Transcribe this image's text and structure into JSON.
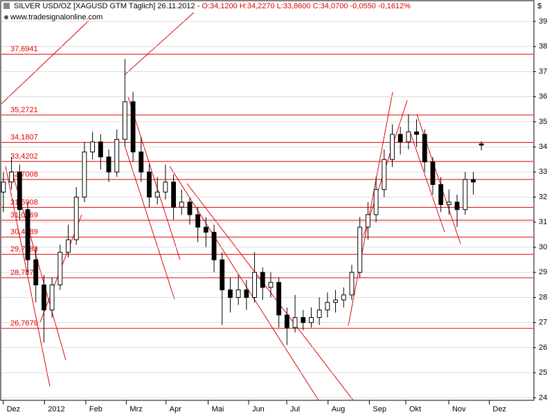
{
  "chart_data": {
    "type": "candlestick",
    "title": "SILVER USD/OZ [XAGUSD GTM  Täglich] 26.11.2012 - ",
    "quote": "O:34,1200 H:34,2270 L:33,8600 C:34,0700 -0,0550 -0,1612%",
    "subtitle": "www.tradesignalonline.com",
    "y_label": "$",
    "open": [
      32.2,
      32.6,
      33.0,
      31.5,
      29.5,
      28.5,
      27.5,
      28.5,
      29.8,
      30.3,
      32.0,
      33.8,
      34.2,
      33.6,
      33.0,
      34.3,
      35.8,
      33.8,
      33.0,
      32.0,
      32.2,
      32.6,
      31.6,
      31.8,
      31.3,
      30.8,
      30.6,
      29.5,
      28.3,
      28.0,
      28.3,
      28.0,
      29.0,
      28.4,
      28.6,
      27.3,
      26.8,
      27.2,
      27.0,
      27.2,
      27.5,
      27.8,
      27.9,
      28.1,
      29.0,
      30.8,
      31.3,
      32.3,
      33.5,
      34.5,
      34.2,
      34.6,
      34.5,
      33.4,
      32.5,
      31.7,
      31.8,
      31.5,
      32.7,
      34.12
    ],
    "high": [
      33.0,
      33.6,
      33.3,
      31.8,
      30.0,
      28.9,
      28.8,
      30.1,
      30.9,
      32.4,
      34.2,
      34.6,
      34.5,
      33.9,
      34.7,
      37.5,
      36.2,
      34.4,
      33.3,
      32.8,
      33.3,
      32.9,
      32.3,
      32.0,
      31.6,
      31.2,
      30.9,
      29.8,
      28.8,
      28.9,
      28.7,
      29.8,
      29.2,
      29.0,
      28.8,
      27.6,
      28.1,
      27.5,
      27.6,
      28.0,
      28.2,
      28.3,
      28.4,
      29.3,
      31.2,
      31.8,
      32.8,
      33.9,
      34.9,
      34.8,
      35.3,
      35.1,
      34.7,
      33.6,
      32.8,
      32.3,
      32.1,
      33.0,
      33.0,
      34.227
    ],
    "low": [
      31.4,
      32.3,
      31.1,
      29.0,
      27.8,
      26.2,
      27.2,
      28.3,
      29.6,
      30.1,
      31.8,
      33.5,
      33.1,
      32.6,
      32.8,
      34.0,
      33.4,
      32.6,
      31.6,
      31.7,
      31.9,
      31.1,
      31.3,
      30.9,
      30.2,
      30.0,
      29.0,
      26.9,
      27.4,
      27.7,
      27.5,
      27.8,
      27.9,
      28.0,
      26.8,
      26.1,
      26.6,
      26.7,
      26.8,
      26.9,
      27.2,
      27.4,
      27.6,
      27.9,
      28.8,
      30.3,
      31.0,
      32.0,
      33.2,
      33.7,
      33.9,
      34.0,
      33.0,
      32.1,
      31.4,
      31.3,
      30.8,
      31.3,
      32.1,
      33.86
    ],
    "close": [
      32.6,
      33.0,
      31.5,
      29.5,
      28.5,
      27.5,
      28.5,
      29.8,
      30.3,
      32.0,
      33.8,
      34.2,
      33.6,
      33.0,
      34.3,
      35.8,
      33.8,
      33.0,
      32.0,
      32.2,
      32.6,
      31.6,
      31.8,
      31.3,
      30.8,
      30.6,
      29.5,
      28.3,
      28.0,
      28.3,
      28.0,
      29.0,
      28.4,
      28.6,
      27.3,
      26.8,
      27.2,
      27.0,
      27.2,
      27.5,
      27.8,
      27.9,
      28.1,
      29.0,
      30.8,
      31.3,
      32.3,
      33.5,
      34.5,
      34.2,
      34.6,
      34.5,
      33.4,
      32.5,
      31.7,
      31.8,
      31.5,
      32.7,
      32.6,
      34.07
    ],
    "xlim": [
      -0.25,
      65.4
    ],
    "xticks": [
      {
        "value": 0.4,
        "label": "Dez"
      },
      {
        "value": 5.5,
        "label": "2012"
      },
      {
        "value": 10.6,
        "label": "Feb"
      },
      {
        "value": 15.6,
        "label": "Mrz"
      },
      {
        "value": 20.5,
        "label": "Apr"
      },
      {
        "value": 25.7,
        "label": "Mai"
      },
      {
        "value": 30.7,
        "label": "Jun"
      },
      {
        "value": 35.4,
        "label": "Jul"
      },
      {
        "value": 40.5,
        "label": "Aug"
      },
      {
        "value": 45.6,
        "label": "Sep"
      },
      {
        "value": 50.1,
        "label": "Okt"
      },
      {
        "value": 55.4,
        "label": "Nov"
      },
      {
        "value": 60.4,
        "label": "Dez"
      }
    ],
    "ylim": [
      23.9,
      39.8
    ],
    "yticks": [
      24,
      25,
      26,
      27,
      28,
      29,
      30,
      31,
      32,
      33,
      34,
      35,
      36,
      37,
      38,
      39
    ],
    "levels": [
      {
        "value": 37.6941,
        "label": "37,6941"
      },
      {
        "value": 35.2721,
        "label": "35,2721"
      },
      {
        "value": 34.1807,
        "label": "34,1807"
      },
      {
        "value": 33.4202,
        "label": "33,4202"
      },
      {
        "value": 32.7008,
        "label": "32,7008"
      },
      {
        "value": 31.5908,
        "label": "31,5908"
      },
      {
        "value": 31.0769,
        "label": "31,0769"
      },
      {
        "value": 30.4089,
        "label": "30,4089"
      },
      {
        "value": 29.7183,
        "label": "29,7183"
      },
      {
        "value": 28.7874,
        "label": "28,7874"
      },
      {
        "value": 26.7679,
        "label": "26,7679"
      }
    ],
    "level_color": "#e00000",
    "up_color": "#ffffff",
    "down_color": "#000000",
    "grid": true
  }
}
